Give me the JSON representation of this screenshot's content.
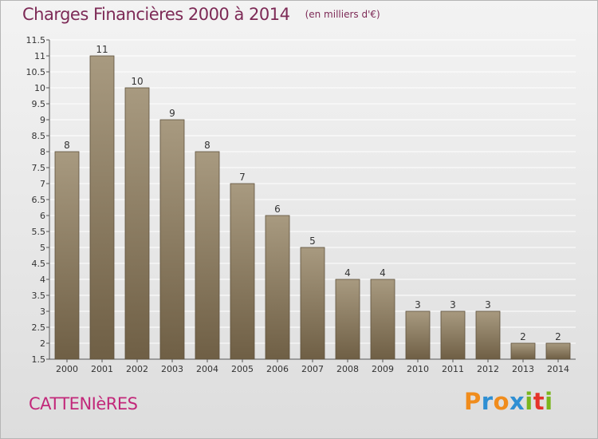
{
  "header": {
    "title": "Charges Financières 2000 à 2014",
    "subtitle": "(en milliers d'€)"
  },
  "footer": {
    "commune": "CATTENIèRES",
    "logo_letters": [
      "P",
      "r",
      "o",
      "x",
      "i",
      "t",
      "i"
    ],
    "logo_colors": [
      "#f08c1c",
      "#2e8fd3",
      "#f08c1c",
      "#2e8fd3",
      "#7ab51d",
      "#e5332a",
      "#7ab51d"
    ]
  },
  "colors": {
    "bar_top": "#a89a80",
    "bar_bottom": "#6f5f45",
    "bar_stroke": "#5e513b",
    "grid": "#ffffff",
    "axis": "#555555"
  },
  "chart_data": {
    "type": "bar",
    "categories": [
      "2000",
      "2001",
      "2002",
      "2003",
      "2004",
      "2005",
      "2006",
      "2007",
      "2008",
      "2009",
      "2010",
      "2011",
      "2012",
      "2013",
      "2014"
    ],
    "values": [
      8,
      11,
      10,
      9,
      8,
      7,
      6,
      5,
      4,
      4,
      3,
      3,
      3,
      2,
      2
    ],
    "ylim": [
      1.5,
      11.5
    ],
    "yticks": [
      1.5,
      2,
      2.5,
      3,
      3.5,
      4,
      4.5,
      5,
      5.5,
      6,
      6.5,
      7,
      7.5,
      8,
      8.5,
      9,
      9.5,
      10,
      10.5,
      11,
      11.5
    ],
    "grid": true,
    "legend": "none"
  }
}
